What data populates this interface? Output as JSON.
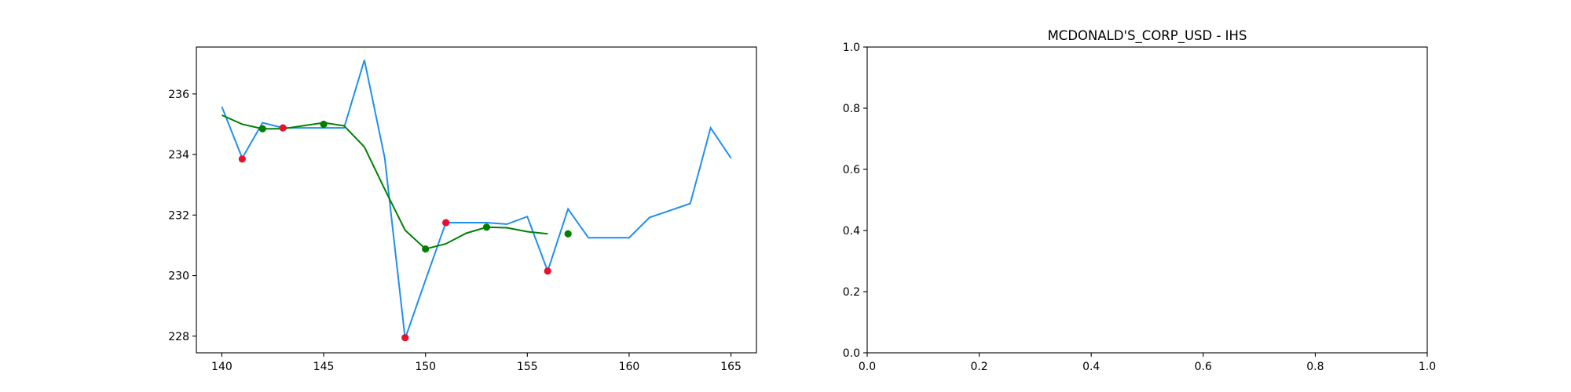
{
  "chart_data": [
    {
      "type": "line",
      "title": "",
      "xlabel": "",
      "ylabel": "",
      "xlim": [
        138.75,
        166.25
      ],
      "ylim": [
        227.45,
        237.55
      ],
      "xticks": [
        140,
        145,
        150,
        155,
        160,
        165
      ],
      "yticks": [
        228,
        230,
        232,
        234,
        236
      ],
      "grid": false,
      "colors": {
        "price": "#1f8ff0",
        "smooth": "#008000",
        "minima": "#e8112d",
        "maxima": "#008000"
      },
      "series": [
        {
          "kind": "line",
          "x": [
            140,
            141,
            142,
            143,
            144,
            145,
            146,
            147,
            148,
            149,
            150,
            151,
            152,
            153,
            154,
            155,
            156,
            157,
            158,
            159,
            160,
            161,
            162,
            163,
            164,
            165
          ],
          "y": [
            235.58,
            233.88,
            235.05,
            234.88,
            234.88,
            234.88,
            234.88,
            237.12,
            233.88,
            227.92,
            229.85,
            231.75,
            231.75,
            231.75,
            231.7,
            231.95,
            230.15,
            232.2,
            231.25,
            231.25,
            231.25,
            231.92,
            232.15,
            232.38,
            234.88,
            233.88
          ]
        },
        {
          "kind": "line",
          "x": [
            140,
            141,
            142,
            143,
            144,
            145,
            146,
            147,
            148,
            149,
            150,
            151,
            152,
            153,
            154,
            155,
            156
          ],
          "y": [
            235.3,
            235.0,
            234.85,
            234.85,
            234.95,
            235.05,
            234.95,
            234.25,
            232.85,
            231.5,
            230.88,
            231.05,
            231.4,
            231.6,
            231.58,
            231.45,
            231.38
          ]
        },
        {
          "kind": "points",
          "x": [
            141,
            143,
            149,
            151,
            156
          ],
          "y": [
            233.85,
            234.88,
            227.95,
            231.75,
            230.15
          ]
        },
        {
          "kind": "points",
          "x": [
            142,
            145,
            150,
            153,
            157
          ],
          "y": [
            234.85,
            235.0,
            230.88,
            231.6,
            231.38
          ]
        }
      ]
    },
    {
      "type": "line",
      "title": "MCDONALD'S_CORP_USD - IHS",
      "xlabel": "",
      "ylabel": "",
      "xlim": [
        0,
        1
      ],
      "ylim": [
        0,
        1
      ],
      "xticks": [
        0.0,
        0.2,
        0.4,
        0.6,
        0.8,
        1.0
      ],
      "yticks": [
        0.0,
        0.2,
        0.4,
        0.6,
        0.8,
        1.0
      ],
      "grid": false,
      "series": []
    }
  ]
}
